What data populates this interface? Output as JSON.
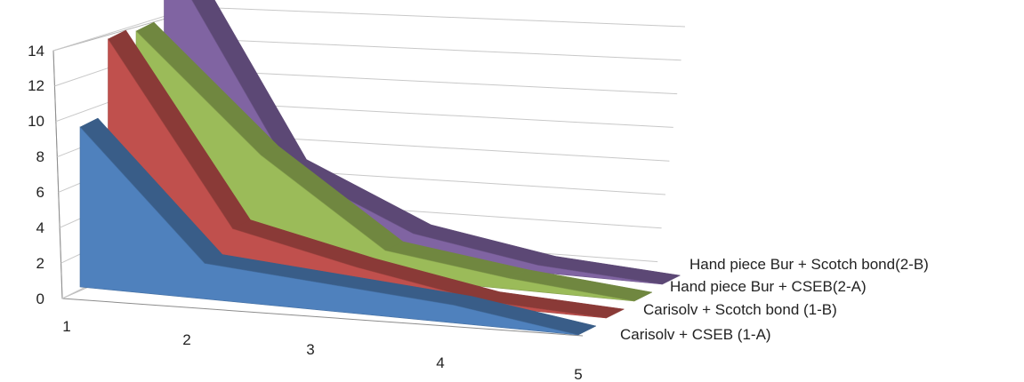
{
  "chart_data": {
    "type": "area",
    "three_d": true,
    "categories": [
      "1",
      "2",
      "3",
      "4",
      "5"
    ],
    "series": [
      {
        "name": "Carisolv + CSEB (1-A)",
        "values": [
          9,
          2,
          1.5,
          1,
          0
        ],
        "color": "#4F81BD"
      },
      {
        "name": "Carisolv + Scotch bond (1-B)",
        "values": [
          13,
          3,
          1.5,
          0.3,
          0
        ],
        "color": "#C0504D"
      },
      {
        "name": "Hand piece Bur + CSEB(2-A)",
        "values": [
          12.5,
          6.2,
          1.5,
          0.6,
          0
        ],
        "color": "#9BBB59"
      },
      {
        "name": "Hand piece Bur + Scotch bond(2-B)",
        "values": [
          16,
          4.5,
          1.5,
          0.4,
          0
        ],
        "color": "#8064A2"
      }
    ],
    "y_ticks": [
      "0",
      "2",
      "4",
      "6",
      "8",
      "10",
      "12",
      "14"
    ],
    "ylim": [
      0,
      14
    ],
    "grid": true,
    "legend": "none",
    "title": "",
    "xlabel": "",
    "ylabel": ""
  }
}
